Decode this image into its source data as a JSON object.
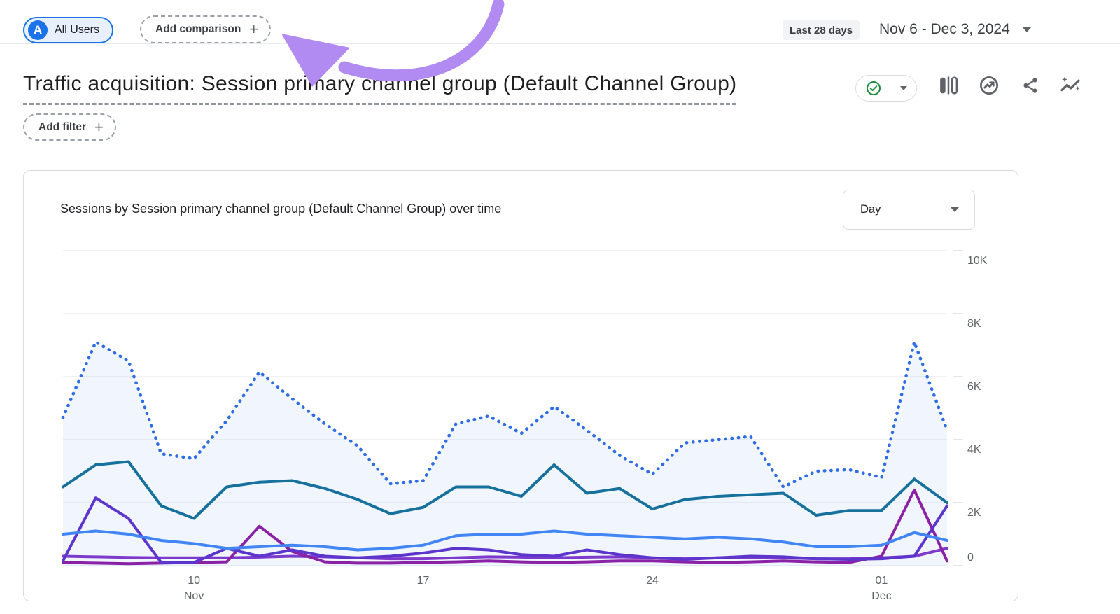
{
  "header": {
    "audience_chip": {
      "avatar_letter": "A",
      "label": "All Users"
    },
    "add_comparison_label": "Add comparison",
    "date_range_preset": "Last 28 days",
    "date_range": "Nov 6 - Dec 3, 2024"
  },
  "title": {
    "text": "Traffic acquisition: Session primary channel group (Default Channel Group)"
  },
  "filters": {
    "add_filter_label": "Add filter"
  },
  "icons": {
    "plus": "+",
    "toolbar": [
      "data-quality-check",
      "comparison-panel",
      "monitor-trend",
      "share",
      "insights-sparkline"
    ]
  },
  "card": {
    "chart_title": "Sessions by Session primary channel group (Default Channel Group) over time",
    "granularity_selected": "Day"
  },
  "colors": {
    "accent_blue": "#1a73e8",
    "audience_chip_bg": "#e8f0fe",
    "preset_chip_bg": "#f1f3f4",
    "border_gray": "#dadce0",
    "icon_gray": "#5f6368",
    "quality_green": "#1e8e3e",
    "annotation_arrow": "#b18af2",
    "area_fill": "rgba(66,133,244,0.08)"
  },
  "chart_data": {
    "type": "line",
    "title": "Sessions by Session primary channel group (Default Channel Group) over time",
    "x_unit": "day",
    "x_start": "Nov 6, 2024",
    "x_end": "Dec 3, 2024",
    "num_points": 28,
    "grid": true,
    "legend": "none",
    "ylim_k": [
      0,
      10
    ],
    "y_ticks": [
      "0",
      "2K",
      "4K",
      "6K",
      "8K",
      "10K"
    ],
    "x_ticks": [
      {
        "label": "10",
        "sublabel": "Nov",
        "day_index": 4
      },
      {
        "label": "17",
        "sublabel": "",
        "day_index": 11
      },
      {
        "label": "24",
        "sublabel": "",
        "day_index": 18
      },
      {
        "label": "01",
        "sublabel": "Dec",
        "day_index": 25
      }
    ],
    "series": [
      {
        "name": "series-1-dotted-blue-area",
        "line_style": "dotted",
        "area_fill": true,
        "color": "#2f6de4",
        "values_k": [
          4.7,
          7.1,
          6.5,
          3.55,
          3.4,
          4.6,
          6.15,
          5.3,
          4.5,
          3.8,
          2.6,
          2.7,
          4.5,
          4.75,
          4.2,
          5.05,
          4.3,
          3.5,
          2.9,
          3.9,
          4.0,
          4.1,
          2.5,
          3.0,
          3.05,
          2.8,
          7.1,
          4.3
        ]
      },
      {
        "name": "series-2-teal",
        "line_style": "solid",
        "area_fill": false,
        "color": "#16719c",
        "values_k": [
          2.5,
          3.2,
          3.3,
          1.9,
          1.5,
          2.5,
          2.65,
          2.7,
          2.45,
          2.1,
          1.65,
          1.85,
          2.5,
          2.5,
          2.2,
          3.2,
          2.3,
          2.45,
          1.8,
          2.1,
          2.2,
          2.25,
          2.3,
          1.6,
          1.75,
          1.75,
          2.75,
          2.0
        ]
      },
      {
        "name": "series-3-blue",
        "line_style": "solid",
        "area_fill": false,
        "color": "#4285f4",
        "values_k": [
          1.0,
          1.1,
          1.0,
          0.8,
          0.7,
          0.55,
          0.6,
          0.65,
          0.6,
          0.5,
          0.55,
          0.65,
          0.95,
          1.0,
          1.0,
          1.1,
          1.0,
          0.95,
          0.9,
          0.85,
          0.9,
          0.85,
          0.75,
          0.6,
          0.6,
          0.65,
          1.05,
          0.8
        ]
      },
      {
        "name": "series-4-violet",
        "line_style": "solid",
        "area_fill": false,
        "color": "#5c35cc",
        "values_k": [
          0.15,
          2.15,
          1.5,
          0.1,
          0.1,
          0.55,
          0.3,
          0.5,
          0.3,
          0.25,
          0.3,
          0.4,
          0.55,
          0.5,
          0.35,
          0.3,
          0.5,
          0.35,
          0.25,
          0.2,
          0.25,
          0.3,
          0.28,
          0.22,
          0.2,
          0.22,
          0.3,
          1.9
        ]
      },
      {
        "name": "series-5-purple",
        "line_style": "solid",
        "area_fill": false,
        "color": "#7c3bcd",
        "values_k": [
          0.3,
          0.28,
          0.26,
          0.25,
          0.25,
          0.25,
          0.27,
          0.3,
          0.28,
          0.25,
          0.22,
          0.22,
          0.25,
          0.28,
          0.27,
          0.25,
          0.27,
          0.28,
          0.25,
          0.22,
          0.25,
          0.27,
          0.25,
          0.22,
          0.22,
          0.25,
          0.3,
          0.55
        ]
      },
      {
        "name": "series-6-magenta",
        "line_style": "solid",
        "area_fill": false,
        "color": "#8b22a6",
        "values_k": [
          0.1,
          0.08,
          0.06,
          0.08,
          0.1,
          0.12,
          1.25,
          0.45,
          0.12,
          0.08,
          0.08,
          0.1,
          0.12,
          0.15,
          0.12,
          0.1,
          0.12,
          0.15,
          0.15,
          0.12,
          0.1,
          0.12,
          0.15,
          0.12,
          0.1,
          0.3,
          2.4,
          0.15
        ]
      }
    ]
  }
}
